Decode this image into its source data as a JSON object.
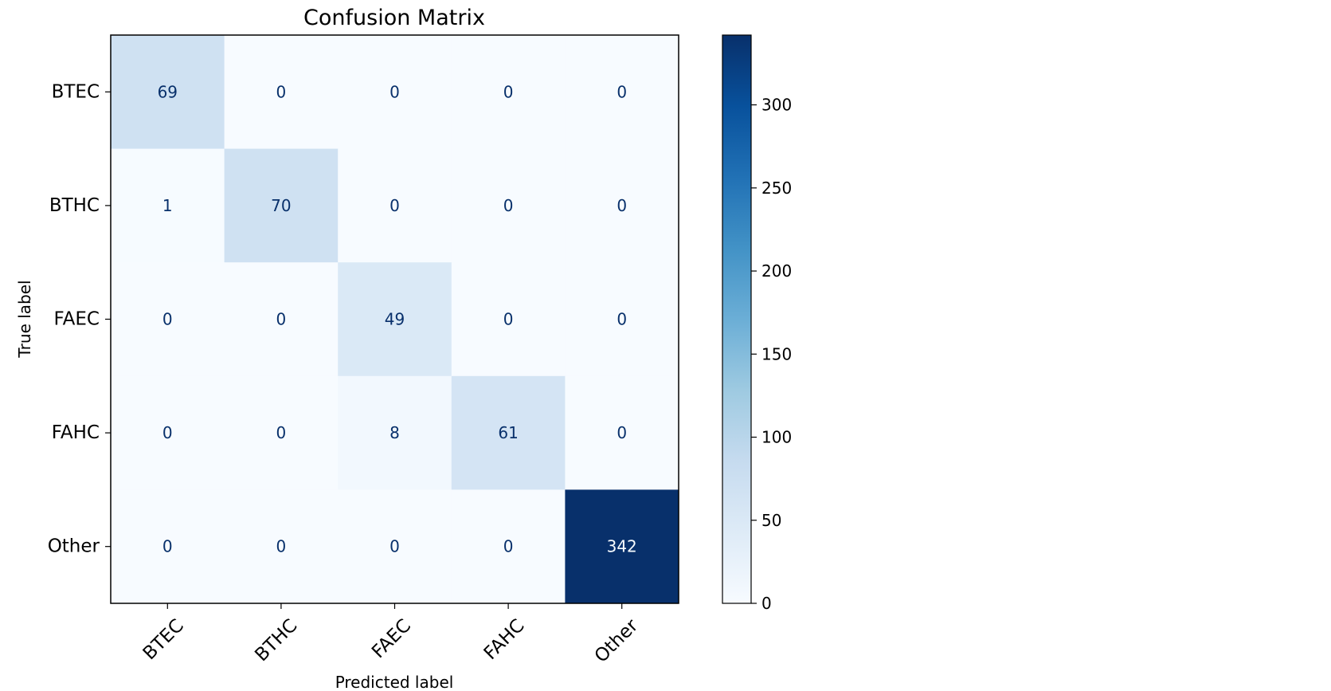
{
  "chart_data": {
    "type": "heatmap",
    "title": "Confusion Matrix",
    "xlabel": "Predicted label",
    "ylabel": "True label",
    "x_categories": [
      "BTEC",
      "BTHC",
      "FAEC",
      "FAHC",
      "Other"
    ],
    "y_categories": [
      "BTEC",
      "BTHC",
      "FAEC",
      "FAHC",
      "Other"
    ],
    "matrix": [
      [
        69,
        0,
        0,
        0,
        0
      ],
      [
        1,
        70,
        0,
        0,
        0
      ],
      [
        0,
        0,
        49,
        0,
        0
      ],
      [
        0,
        0,
        8,
        61,
        0
      ],
      [
        0,
        0,
        0,
        0,
        342
      ]
    ],
    "colormap": "Blues",
    "colorbar": {
      "range": [
        0,
        342
      ],
      "ticks": [
        0,
        50,
        100,
        150,
        200,
        250,
        300
      ]
    },
    "grid": false
  }
}
